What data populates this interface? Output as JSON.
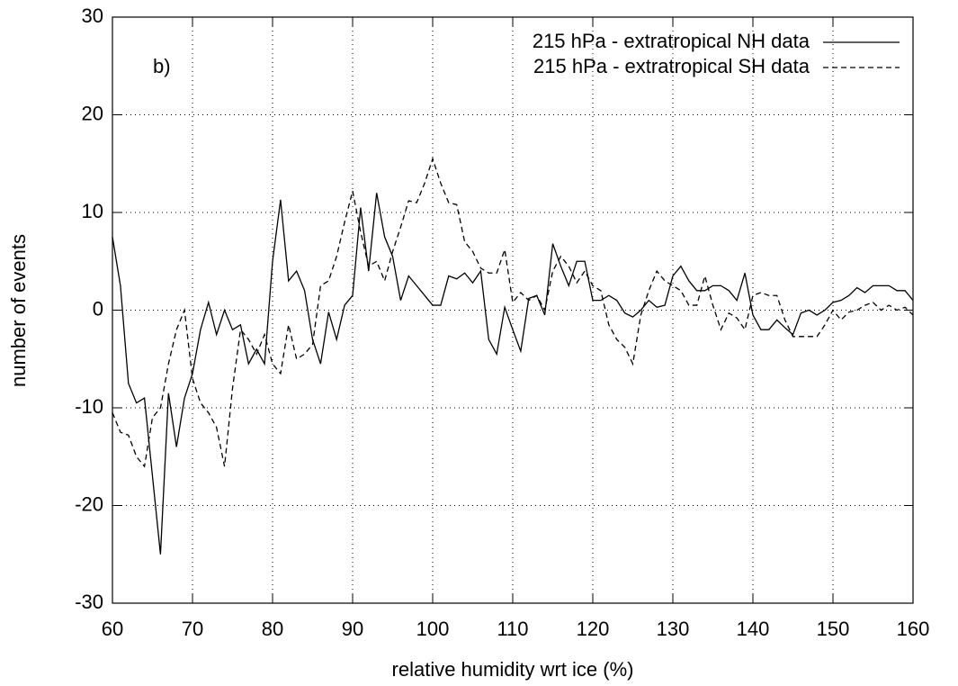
{
  "chart_data": {
    "type": "line",
    "annotation": "b)",
    "xlabel": "relative humidity wrt ice (%)",
    "ylabel": "number of events",
    "xlim": [
      60,
      160
    ],
    "ylim": [
      -30,
      30
    ],
    "xticks": [
      60,
      70,
      80,
      90,
      100,
      110,
      120,
      130,
      140,
      150,
      160
    ],
    "yticks": [
      -30,
      -20,
      -10,
      0,
      10,
      20,
      30
    ],
    "grid": true,
    "legend": "top-right",
    "x": [
      60,
      61,
      62,
      63,
      64,
      65,
      66,
      67,
      68,
      69,
      70,
      71,
      72,
      73,
      74,
      75,
      76,
      77,
      78,
      79,
      80,
      81,
      82,
      83,
      84,
      85,
      86,
      87,
      88,
      89,
      90,
      91,
      92,
      93,
      94,
      95,
      96,
      97,
      98,
      99,
      100,
      101,
      102,
      103,
      104,
      105,
      106,
      107,
      108,
      109,
      110,
      111,
      112,
      113,
      114,
      115,
      116,
      117,
      118,
      119,
      120,
      121,
      122,
      123,
      124,
      125,
      126,
      127,
      128,
      129,
      130,
      131,
      132,
      133,
      134,
      135,
      136,
      137,
      138,
      139,
      140,
      141,
      142,
      143,
      144,
      145,
      146,
      147,
      148,
      149,
      150,
      151,
      152,
      153,
      154,
      155,
      156,
      157,
      158,
      159,
      160
    ],
    "series": [
      {
        "name": "215 hPa - extratropical NH data",
        "color": "#000000",
        "dash": "solid",
        "values": [
          7.5,
          2.5,
          -7.5,
          -9.5,
          -9,
          -17,
          -25,
          -8.5,
          -14,
          -9,
          -6.5,
          -2,
          0.8,
          -2.5,
          0,
          -2,
          -1.5,
          -5.5,
          -4,
          -5.5,
          5,
          11.3,
          3,
          4,
          2,
          -3,
          -5.5,
          -0.2,
          -3,
          0.5,
          1.5,
          10.5,
          4,
          12,
          7.5,
          5.5,
          1,
          3.5,
          2.5,
          1.5,
          0.5,
          0.5,
          3.5,
          3.2,
          3.8,
          2.8,
          4,
          -3,
          -4.5,
          0.3,
          -2,
          -4.2,
          1.2,
          1.5,
          -0.5,
          6.8,
          4.5,
          2.5,
          5,
          5,
          1,
          1,
          1.5,
          1,
          -0.3,
          -0.7,
          0,
          1,
          0.3,
          0.5,
          3.5,
          4.5,
          3,
          2,
          2,
          2.5,
          2.5,
          2,
          1,
          3.8,
          -0.5,
          -2,
          -2,
          -1,
          -1.8,
          -2.5,
          -0.3,
          0,
          -0.5,
          0,
          0.8,
          1,
          1.5,
          2.3,
          1.8,
          2.5,
          2.5,
          2.5,
          2,
          2,
          1
        ]
      },
      {
        "name": "215 hPa - extratropical SH data",
        "color": "#000000",
        "dash": "dashed",
        "values": [
          -10.5,
          -12.5,
          -12.8,
          -15,
          -16,
          -11,
          -10,
          -5.5,
          -2,
          0,
          -7,
          -9.5,
          -10.5,
          -12,
          -16,
          -8,
          -2,
          -3,
          -4.5,
          -2.5,
          -5.5,
          -6.5,
          -1.5,
          -5,
          -4.5,
          -3.5,
          2.5,
          3,
          5.5,
          9,
          12.2,
          8,
          4.5,
          5,
          3,
          6,
          8.5,
          11.2,
          11,
          13,
          15.5,
          13,
          11,
          10.8,
          7,
          6,
          4.3,
          3.8,
          3.8,
          6.2,
          0.8,
          1.8,
          1,
          1.5,
          0,
          4,
          5.5,
          4.5,
          2.8,
          4,
          2.5,
          2,
          -1.5,
          -3,
          -3.8,
          -5.5,
          -0.5,
          2,
          4,
          3,
          2.5,
          2,
          0.5,
          0.5,
          3.5,
          0.5,
          -2,
          -0.3,
          -0.8,
          -2,
          1.5,
          1.8,
          1.5,
          1.5,
          -1,
          -2.7,
          -2.7,
          -2.7,
          -2.7,
          -1.5,
          0,
          -1,
          -0.2,
          0,
          0.5,
          0.8,
          0,
          0.5,
          0,
          0.3,
          -0.5
        ]
      }
    ]
  }
}
